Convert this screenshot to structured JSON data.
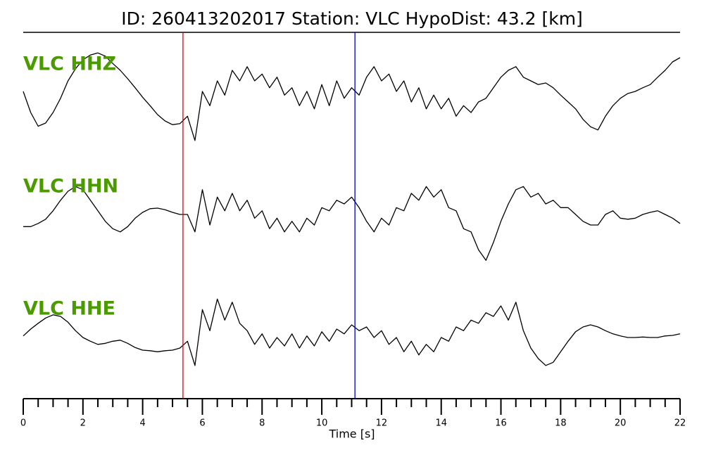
{
  "chart_data": {
    "type": "seismogram",
    "title": "ID: 260413202017   Station: VLC   HypoDist:    43.2 [km]",
    "xlabel": "Time [s]",
    "xlim": [
      0,
      22
    ],
    "xticks": [
      0,
      2,
      4,
      6,
      8,
      10,
      12,
      14,
      16,
      18,
      20,
      22
    ],
    "xminorticks": [
      0.5,
      1,
      1.5,
      2.5,
      3,
      3.5,
      4.5,
      5,
      5.5,
      6.5,
      7,
      7.5,
      8.5,
      9,
      9.5,
      10.5,
      11,
      11.5,
      12.5,
      13,
      13.5,
      14.5,
      15,
      15.5,
      16.5,
      17,
      17.5,
      18.5,
      19,
      19.5,
      20.5,
      21,
      21.5
    ],
    "ylim": [
      -1,
      1
    ],
    "label_color": "#4a9a00",
    "markers": [
      {
        "x": 5.35,
        "color": "#e00000"
      },
      {
        "x": 11.11,
        "color": "#0000cc"
      }
    ],
    "x": [
      0,
      0.25,
      0.5,
      0.75,
      1,
      1.25,
      1.5,
      1.75,
      2,
      2.25,
      2.5,
      2.75,
      3,
      3.25,
      3.5,
      3.75,
      4,
      4.25,
      4.5,
      4.75,
      5,
      5.25,
      5.5,
      5.75,
      6,
      6.25,
      6.5,
      6.75,
      7,
      7.25,
      7.5,
      7.75,
      8,
      8.25,
      8.5,
      8.75,
      9,
      9.25,
      9.5,
      9.75,
      10,
      10.25,
      10.5,
      10.75,
      11,
      11.25,
      11.5,
      11.75,
      12,
      12.25,
      12.5,
      12.75,
      13,
      13.25,
      13.5,
      13.75,
      14,
      14.25,
      14.5,
      14.75,
      15,
      15.25,
      15.5,
      15.75,
      16,
      16.25,
      16.5,
      16.75,
      17,
      17.25,
      17.5,
      17.75,
      18,
      18.25,
      18.5,
      18.75,
      19,
      19.25,
      19.5,
      19.75,
      20,
      20.25,
      20.5,
      20.75,
      21,
      21.25,
      21.5,
      21.75,
      22
    ],
    "series": [
      {
        "name": "VLC HHZ",
        "color": "#000000",
        "values": [
          0.16,
          -0.24,
          -0.5,
          -0.44,
          -0.24,
          0.03,
          0.36,
          0.59,
          0.76,
          0.85,
          0.89,
          0.83,
          0.69,
          0.56,
          0.4,
          0.23,
          0.05,
          -0.11,
          -0.28,
          -0.4,
          -0.47,
          -0.45,
          -0.31,
          -0.77,
          0.16,
          -0.11,
          0.36,
          0.09,
          0.56,
          0.36,
          0.63,
          0.36,
          0.49,
          0.23,
          0.43,
          0.09,
          0.23,
          -0.11,
          0.16,
          -0.17,
          0.29,
          -0.11,
          0.36,
          0.03,
          0.23,
          0.09,
          0.43,
          0.63,
          0.36,
          0.49,
          0.16,
          0.36,
          -0.04,
          0.23,
          -0.17,
          0.09,
          -0.17,
          0.03,
          -0.31,
          -0.11,
          -0.24,
          -0.04,
          0.03,
          0.23,
          0.43,
          0.56,
          0.63,
          0.43,
          0.36,
          0.29,
          0.32,
          0.23,
          0.09,
          -0.04,
          -0.17,
          -0.37,
          -0.51,
          -0.57,
          -0.31,
          -0.11,
          0.03,
          0.12,
          0.16,
          0.23,
          0.29,
          0.43,
          0.56,
          0.72,
          0.8
        ]
      },
      {
        "name": "VLC HHN",
        "color": "#000000",
        "values": [
          -0.07,
          -0.07,
          -0.01,
          0.07,
          0.23,
          0.43,
          0.6,
          0.69,
          0.63,
          0.43,
          0.23,
          0.03,
          -0.11,
          -0.17,
          -0.07,
          0.09,
          0.2,
          0.27,
          0.28,
          0.25,
          0.2,
          0.16,
          0.16,
          -0.17,
          0.63,
          -0.04,
          0.49,
          0.23,
          0.56,
          0.23,
          0.43,
          0.09,
          0.23,
          -0.11,
          0.09,
          -0.17,
          0.03,
          -0.17,
          0.09,
          -0.04,
          0.29,
          0.23,
          0.43,
          0.36,
          0.49,
          0.29,
          0.03,
          -0.17,
          0.09,
          -0.04,
          0.29,
          0.23,
          0.56,
          0.43,
          0.69,
          0.49,
          0.63,
          0.29,
          0.23,
          -0.11,
          -0.17,
          -0.51,
          -0.71,
          -0.37,
          0.03,
          0.36,
          0.63,
          0.69,
          0.49,
          0.56,
          0.36,
          0.43,
          0.29,
          0.29,
          0.16,
          0.03,
          -0.04,
          -0.04,
          0.16,
          0.23,
          0.09,
          0.07,
          0.09,
          0.16,
          0.2,
          0.23,
          0.16,
          0.09,
          -0.01
        ]
      },
      {
        "name": "VLC HHE",
        "color": "#000000",
        "values": [
          0.19,
          0.32,
          0.43,
          0.53,
          0.59,
          0.56,
          0.45,
          0.29,
          0.16,
          0.09,
          0.03,
          0.05,
          0.09,
          0.11,
          0.05,
          -0.03,
          -0.08,
          -0.09,
          -0.11,
          -0.09,
          -0.08,
          -0.04,
          0.09,
          -0.37,
          0.69,
          0.29,
          0.89,
          0.49,
          0.83,
          0.43,
          0.29,
          0.03,
          0.23,
          -0.04,
          0.16,
          0,
          0.23,
          -0.04,
          0.19,
          0,
          0.27,
          0.09,
          0.32,
          0.23,
          0.4,
          0.29,
          0.36,
          0.16,
          0.29,
          0.03,
          0.16,
          -0.11,
          0.09,
          -0.17,
          0.03,
          -0.11,
          0.16,
          0.09,
          0.36,
          0.29,
          0.49,
          0.43,
          0.63,
          0.56,
          0.76,
          0.49,
          0.83,
          0.29,
          -0.04,
          -0.24,
          -0.37,
          -0.31,
          -0.11,
          0.09,
          0.27,
          0.36,
          0.4,
          0.36,
          0.29,
          0.23,
          0.19,
          0.16,
          0.16,
          0.17,
          0.16,
          0.16,
          0.19,
          0.2,
          0.23
        ]
      }
    ]
  }
}
